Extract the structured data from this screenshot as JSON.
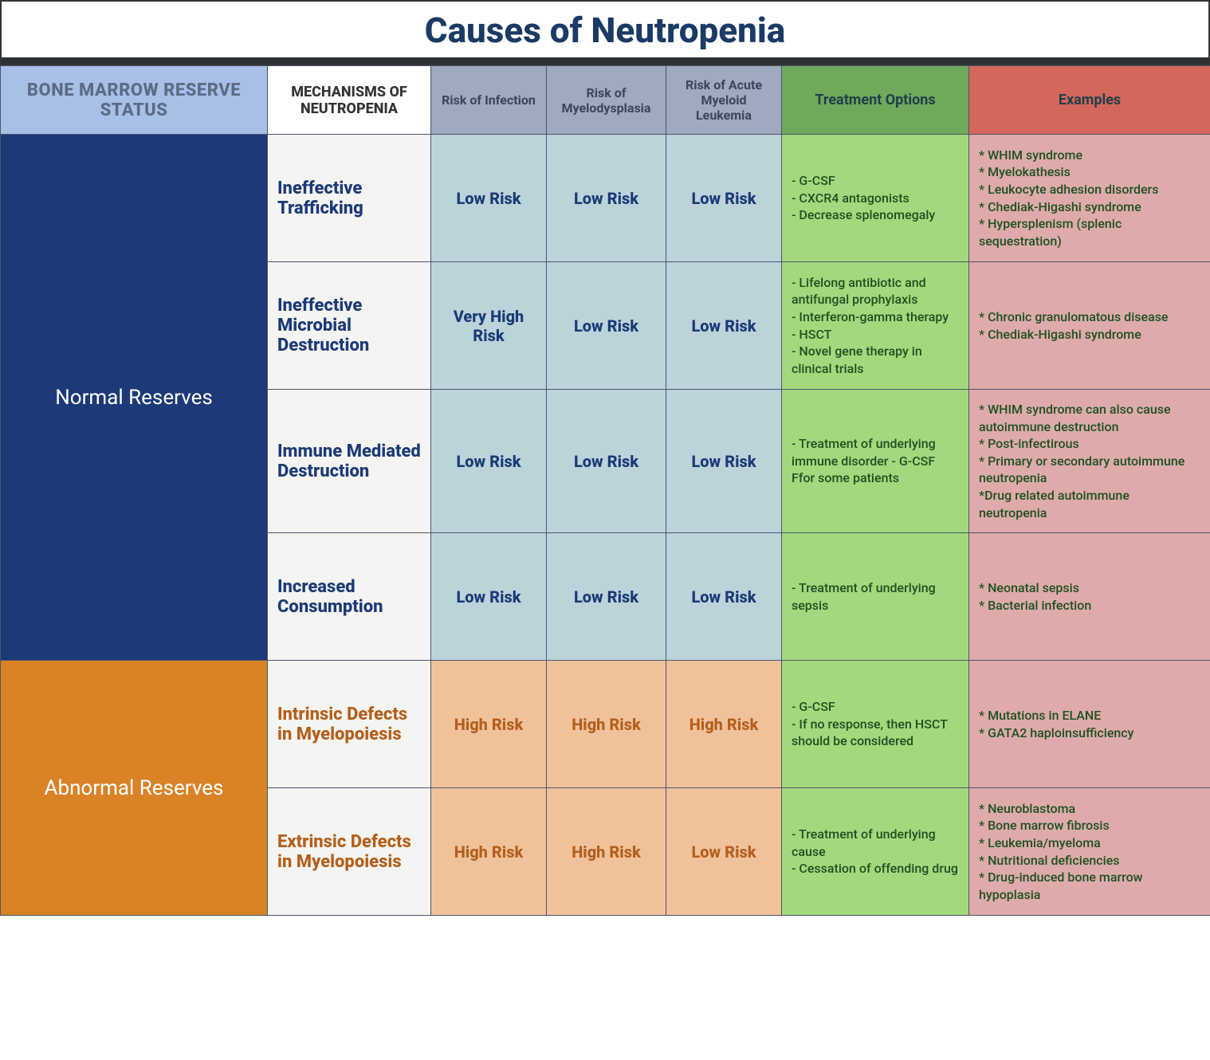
{
  "title": "Causes of Neutropenia",
  "columns": {
    "status": "BONE MARROW RESERVE STATUS",
    "mechanism": "MECHANISMS OF NEUTROPENIA",
    "risk_infection": "Risk of Infection",
    "risk_myelo": "Risk of Myelodysplasia",
    "risk_aml": "Risk of Acute Myeloid Leukemia",
    "treatment": "Treatment Options",
    "examples": "Examples"
  },
  "colors": {
    "title_text": "#1b3a66",
    "header_rule": "#2c2f33",
    "hdr_status_bg": "#a8bfe8",
    "hdr_status_text": "#5c6b84",
    "hdr_mech_bg": "#ffffff",
    "hdr_risk_bg": "#9fa9bf",
    "hdr_treat_bg": "#6fa95c",
    "hdr_examples_bg": "#d4675c",
    "normal_bg": "#1b3a77",
    "abnormal_bg": "#d98326",
    "mech_bg": "#f4f4f2",
    "risk_normal_bg": "#bdd3da",
    "risk_abnormal_bg": "#f0c29c",
    "treat_bg": "#a3d97c",
    "examples_bg": "#deabaa",
    "cell_border": "#4a556b"
  },
  "typography": {
    "title_fontsize": 44,
    "status_fontsize": 26,
    "mech_fontsize": 22,
    "risk_fontsize": 20,
    "body_fontsize": 16,
    "header_fontsize": 18
  },
  "groups": [
    {
      "status_label": "Normal Reserves",
      "tone": "normal",
      "rows": [
        {
          "mechanism": "Ineffective Trafficking",
          "risk_infection": "Low Risk",
          "risk_myelo": "Low Risk",
          "risk_aml": "Low Risk",
          "treatment": "- G-CSF\n- CXCR4 antagonists\n- Decrease splenomegaly",
          "examples": "* WHIM syndrome\n* Myelokathesis\n* Leukocyte adhesion disorders\n* Chediak-Higashi syndrome\n* Hypersplenism (splenic sequestration)"
        },
        {
          "mechanism": "Ineffective Microbial Destruction",
          "risk_infection": "Very High Risk",
          "risk_myelo": "Low Risk",
          "risk_aml": "Low Risk",
          "treatment": "- Lifelong antibiotic and antifungal prophylaxis\n- Interferon-gamma therapy\n- HSCT\n- Novel gene therapy in clinical trials",
          "examples": "* Chronic granulomatous disease\n* Chediak-Higashi syndrome"
        },
        {
          "mechanism": "Immune Mediated Destruction",
          "risk_infection": "Low Risk",
          "risk_myelo": "Low Risk",
          "risk_aml": "Low Risk",
          "treatment": "- Treatment of underlying immune disorder               - G-CSF Ffor some patients",
          "examples": "* WHIM syndrome can also cause autoimmune destruction\n* Post-infectirous\n* Primary or secondary autoimmune neutropenia\n*Drug related autoimmune neutropenia"
        },
        {
          "mechanism": "Increased Consumption",
          "risk_infection": "Low Risk",
          "risk_myelo": "Low Risk",
          "risk_aml": "Low Risk",
          "treatment": "- Treatment of underlying sepsis",
          "examples": "* Neonatal sepsis\n* Bacterial infection"
        }
      ]
    },
    {
      "status_label": "Abnormal Reserves",
      "tone": "abnormal",
      "rows": [
        {
          "mechanism": "Intrinsic Defects in Myelopoiesis",
          "risk_infection": "High Risk",
          "risk_myelo": "High Risk",
          "risk_aml": "High Risk",
          "treatment": "- G-CSF\n- If no response, then HSCT should be considered",
          "examples": "* Mutations in ELANE\n* GATA2 haploinsufficiency"
        },
        {
          "mechanism": "Extrinsic Defects in Myelopoiesis",
          "risk_infection": "High Risk",
          "risk_myelo": "High Risk",
          "risk_aml": "Low Risk",
          "treatment": "- Treatment of underlying cause\n- Cessation of offending drug",
          "examples": "* Neuroblastoma\n* Bone marrow fibrosis\n* Leukemia/myeloma\n* Nutritional deficiencies\n* Drug-induced bone marrow hypoplasia"
        }
      ]
    }
  ]
}
